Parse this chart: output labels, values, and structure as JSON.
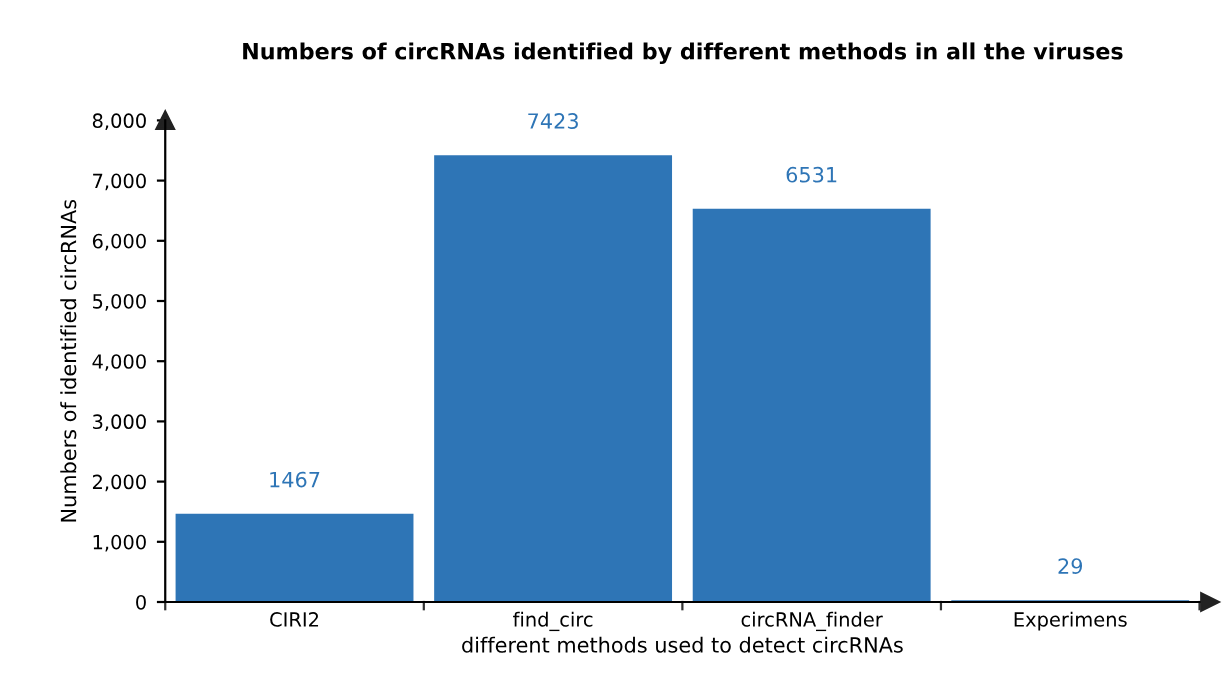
{
  "chart_data": {
    "type": "bar",
    "title": "Numbers of circRNAs identified by different methods in all the viruses",
    "xlabel": "different methods used to detect circRNAs",
    "ylabel": "Numbers of identified circRNAs",
    "categories": [
      "CIRI2",
      "find_circ",
      "circRNA_finder",
      "Experimens"
    ],
    "values": [
      1467,
      7423,
      6531,
      29
    ],
    "color": "#2e75b6",
    "data_labels": true,
    "ylim": [
      0,
      8000
    ],
    "yticks": [
      {
        "value": 0,
        "label": "0"
      },
      {
        "value": 1000,
        "label": "1,000"
      },
      {
        "value": 2000,
        "label": "2,000"
      },
      {
        "value": 3000,
        "label": "3,000"
      },
      {
        "value": 4000,
        "label": "4,000"
      },
      {
        "value": 5000,
        "label": "5,000"
      },
      {
        "value": 6000,
        "label": "6,000"
      },
      {
        "value": 7000,
        "label": "7,000"
      },
      {
        "value": 8000,
        "label": "8,000"
      }
    ],
    "grid": false,
    "legend": false
  }
}
